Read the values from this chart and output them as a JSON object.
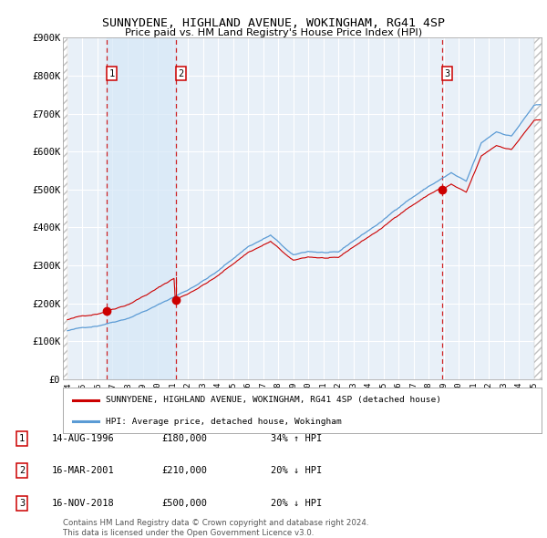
{
  "title": "SUNNYDENE, HIGHLAND AVENUE, WOKINGHAM, RG41 4SP",
  "subtitle": "Price paid vs. HM Land Registry's House Price Index (HPI)",
  "ylim": [
    0,
    900000
  ],
  "yticks": [
    0,
    100000,
    200000,
    300000,
    400000,
    500000,
    600000,
    700000,
    800000,
    900000
  ],
  "ytick_labels": [
    "£0",
    "£100K",
    "£200K",
    "£300K",
    "£400K",
    "£500K",
    "£600K",
    "£700K",
    "£800K",
    "£900K"
  ],
  "xlim_start": 1993.7,
  "xlim_end": 2025.5,
  "sale_dates": [
    1996.617,
    2001.204,
    2018.878
  ],
  "sale_prices": [
    180000,
    210000,
    500000
  ],
  "sale_labels": [
    "1",
    "2",
    "3"
  ],
  "sale_annotations": [
    {
      "label": "1",
      "date": "14-AUG-1996",
      "price": "£180,000",
      "change": "34% ↑ HPI"
    },
    {
      "label": "2",
      "date": "16-MAR-2001",
      "price": "£210,000",
      "change": "20% ↓ HPI"
    },
    {
      "label": "3",
      "date": "16-NOV-2018",
      "price": "£500,000",
      "change": "20% ↓ HPI"
    }
  ],
  "legend_line1": "SUNNYDENE, HIGHLAND AVENUE, WOKINGHAM, RG41 4SP (detached house)",
  "legend_line2": "HPI: Average price, detached house, Wokingham",
  "footer": "Contains HM Land Registry data © Crown copyright and database right 2024.\nThis data is licensed under the Open Government Licence v3.0.",
  "red_color": "#cc0000",
  "blue_fill_color": "#d0e4f7",
  "blue_line_color": "#5b9bd5",
  "ownership_fill": "#d6e8f7",
  "background_color": "#ffffff",
  "plot_bg_color": "#e8f0f8",
  "grid_color": "#ffffff",
  "hatch_color": "#c0c0c0"
}
